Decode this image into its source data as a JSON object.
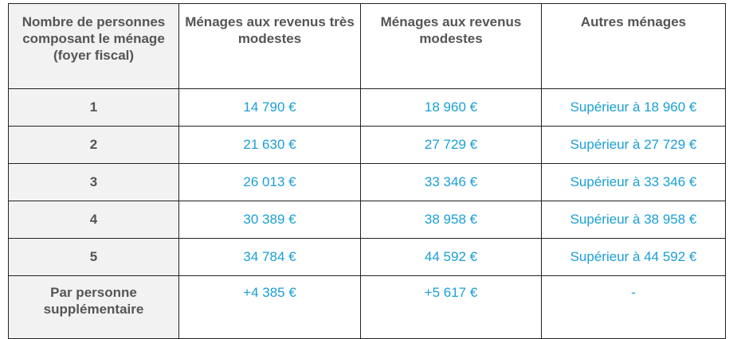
{
  "table": {
    "headers": [
      "Nombre de personnes composant le ménage (foyer fiscal)",
      "Ménages aux revenus très modestes",
      "Ménages aux revenus modestes",
      "Autres ménages"
    ],
    "rows": [
      [
        "1",
        "14 790 €",
        "18 960 €",
        "Supérieur à 18 960 €"
      ],
      [
        "2",
        "21 630 €",
        "27 729 €",
        "Supérieur à 27 729 €"
      ],
      [
        "3",
        "26 013 €",
        "33 346 €",
        "Supérieur à 33 346 €"
      ],
      [
        "4",
        "30 389 €",
        "38 958 €",
        "Supérieur à 38 958 €"
      ],
      [
        "5",
        "34 784 €",
        "44 592 €",
        "Supérieur à 44 592 €"
      ],
      [
        "Par personne supplémentaire",
        "+4 385 €",
        "+5 617 €",
        "-"
      ]
    ]
  },
  "colors": {
    "value_text": "#1a9fd5",
    "header_text": "#555555",
    "row_header_bg": "#f2f2f2",
    "border": "#222222"
  }
}
